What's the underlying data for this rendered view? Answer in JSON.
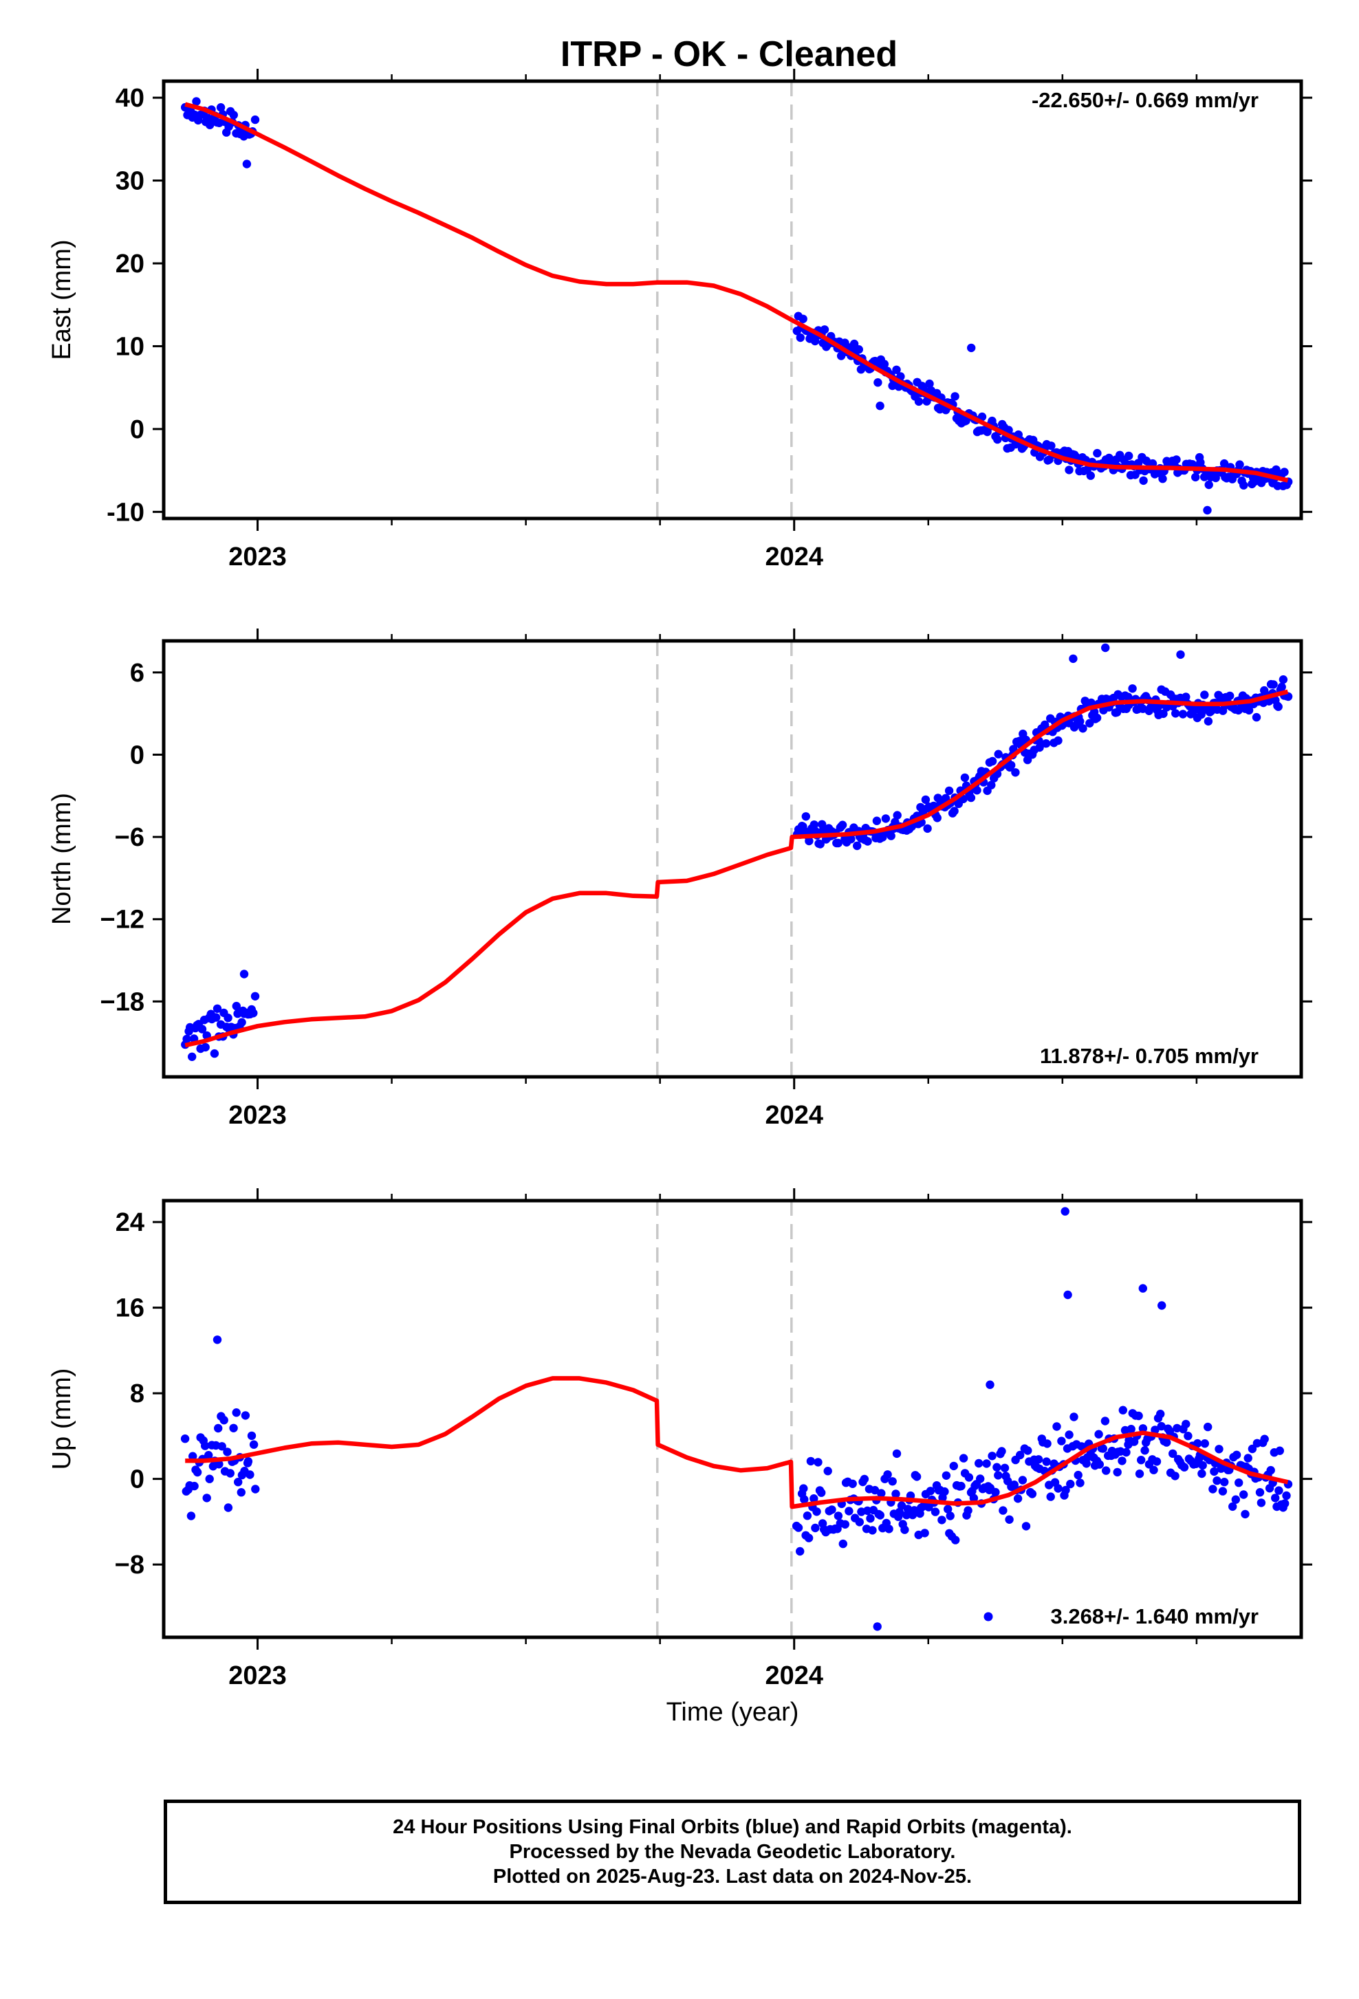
{
  "title": "ITRP  - OK - Cleaned",
  "x_axis_label": "Time (year)",
  "caption": [
    "24 Hour Positions Using Final Orbits (blue) and Rapid Orbits (magenta).",
    "Processed by the Nevada Geodetic Laboratory.",
    "Plotted on 2025-Aug-23. Last data on 2024-Nov-25."
  ],
  "colors": {
    "final_orbits": "#0000ff",
    "model_fit": "#ff0000",
    "event_lines": "#c8c8c8",
    "frame": "#000000"
  },
  "chart_data": [
    {
      "type": "scatter",
      "ylabel": "East (mm)",
      "rate_label": "-22.650+/- 0.669 mm/yr",
      "rate_label_position": "top-right",
      "xlim": [
        2022.825,
        2024.945
      ],
      "ylim": [
        -10.8,
        42.0
      ],
      "yticks": [
        40,
        30,
        20,
        10,
        0,
        -10
      ],
      "xticks": [
        2023,
        2024
      ],
      "xtick_labels": [
        "2023",
        "2024"
      ],
      "event_lines_x": [
        2023.745,
        2023.995
      ],
      "series": [
        {
          "kind": "final-orbits-points",
          "segments": [
            {
              "x0": 2022.865,
              "x1": 2022.995,
              "n": 38,
              "trend": [
                {
                  "x": 2022.865,
                  "y": 38.5
                },
                {
                  "x": 2022.93,
                  "y": 37.5
                },
                {
                  "x": 2022.995,
                  "y": 35.5
                }
              ],
              "noise": 1.6,
              "seed": 11
            },
            {
              "x0": 2024.005,
              "x1": 2024.92,
              "n": 300,
              "trend": [
                {
                  "x": 2024.0,
                  "y": 13.2
                },
                {
                  "x": 2024.1,
                  "y": 9.5
                },
                {
                  "x": 2024.2,
                  "y": 5.8
                },
                {
                  "x": 2024.3,
                  "y": 2.2
                },
                {
                  "x": 2024.4,
                  "y": -1.0
                },
                {
                  "x": 2024.5,
                  "y": -3.5
                },
                {
                  "x": 2024.6,
                  "y": -4.6
                },
                {
                  "x": 2024.7,
                  "y": -4.8
                },
                {
                  "x": 2024.8,
                  "y": -5.0
                },
                {
                  "x": 2024.92,
                  "y": -6.5
                }
              ],
              "noise": 1.5,
              "seed": 22
            }
          ],
          "extra": [
            {
              "x": 2022.98,
              "y": 32.0
            },
            {
              "x": 2024.33,
              "y": 9.8
            },
            {
              "x": 2024.16,
              "y": 2.8
            },
            {
              "x": 2024.77,
              "y": -9.8
            }
          ]
        },
        {
          "kind": "model-fit-line",
          "points": [
            {
              "x": 2022.865,
              "y": 39.2
            },
            {
              "x": 2022.9,
              "y": 38.6
            },
            {
              "x": 2022.95,
              "y": 37.2
            },
            {
              "x": 2023.0,
              "y": 35.6
            },
            {
              "x": 2023.05,
              "y": 34.0
            },
            {
              "x": 2023.1,
              "y": 32.3
            },
            {
              "x": 2023.15,
              "y": 30.6
            },
            {
              "x": 2023.2,
              "y": 29.0
            },
            {
              "x": 2023.25,
              "y": 27.5
            },
            {
              "x": 2023.3,
              "y": 26.1
            },
            {
              "x": 2023.35,
              "y": 24.6
            },
            {
              "x": 2023.4,
              "y": 23.1
            },
            {
              "x": 2023.45,
              "y": 21.4
            },
            {
              "x": 2023.5,
              "y": 19.8
            },
            {
              "x": 2023.55,
              "y": 18.5
            },
            {
              "x": 2023.6,
              "y": 17.8
            },
            {
              "x": 2023.65,
              "y": 17.5
            },
            {
              "x": 2023.7,
              "y": 17.5
            },
            {
              "x": 2023.745,
              "y": 17.7
            },
            {
              "x": 2023.8,
              "y": 17.7
            },
            {
              "x": 2023.85,
              "y": 17.3
            },
            {
              "x": 2023.9,
              "y": 16.3
            },
            {
              "x": 2023.95,
              "y": 14.8
            },
            {
              "x": 2024.0,
              "y": 13.0
            },
            {
              "x": 2024.05,
              "y": 11.3
            },
            {
              "x": 2024.1,
              "y": 9.3
            },
            {
              "x": 2024.15,
              "y": 7.4
            },
            {
              "x": 2024.2,
              "y": 5.6
            },
            {
              "x": 2024.25,
              "y": 4.0
            },
            {
              "x": 2024.3,
              "y": 2.4
            },
            {
              "x": 2024.35,
              "y": 0.8
            },
            {
              "x": 2024.4,
              "y": -0.8
            },
            {
              "x": 2024.45,
              "y": -2.3
            },
            {
              "x": 2024.5,
              "y": -3.5
            },
            {
              "x": 2024.55,
              "y": -4.3
            },
            {
              "x": 2024.6,
              "y": -4.6
            },
            {
              "x": 2024.7,
              "y": -4.7
            },
            {
              "x": 2024.8,
              "y": -4.9
            },
            {
              "x": 2024.86,
              "y": -5.3
            },
            {
              "x": 2024.92,
              "y": -6.2
            }
          ]
        }
      ]
    },
    {
      "type": "scatter",
      "ylabel": "North (mm)",
      "rate_label": "11.878+/- 0.705 mm/yr",
      "rate_label_position": "bottom-right",
      "xlim": [
        2022.825,
        2024.945
      ],
      "ylim": [
        -23.5,
        8.3
      ],
      "yticks": [
        6,
        0,
        -6,
        -12,
        -18
      ],
      "ytick_labels": [
        "6",
        "0",
        "−6",
        "−12",
        "−18"
      ],
      "xticks": [
        2023,
        2024
      ],
      "xtick_labels": [
        "2023",
        "2024"
      ],
      "event_lines_x": [
        2023.745,
        2023.995
      ],
      "series": [
        {
          "kind": "final-orbits-points",
          "segments": [
            {
              "x0": 2022.865,
              "x1": 2022.995,
              "n": 42,
              "trend": [
                {
                  "x": 2022.865,
                  "y": -21.0
                },
                {
                  "x": 2022.93,
                  "y": -20.0
                },
                {
                  "x": 2022.995,
                  "y": -18.3
                }
              ],
              "noise": 1.3,
              "seed": 33
            },
            {
              "x0": 2024.005,
              "x1": 2024.92,
              "n": 320,
              "trend": [
                {
                  "x": 2024.0,
                  "y": -5.3
                },
                {
                  "x": 2024.1,
                  "y": -5.9
                },
                {
                  "x": 2024.2,
                  "y": -5.4
                },
                {
                  "x": 2024.27,
                  "y": -4.0
                },
                {
                  "x": 2024.35,
                  "y": -1.6
                },
                {
                  "x": 2024.45,
                  "y": 1.1
                },
                {
                  "x": 2024.55,
                  "y": 3.4
                },
                {
                  "x": 2024.65,
                  "y": 3.8
                },
                {
                  "x": 2024.75,
                  "y": 3.6
                },
                {
                  "x": 2024.85,
                  "y": 3.8
                },
                {
                  "x": 2024.92,
                  "y": 4.7
                }
              ],
              "noise": 1.1,
              "seed": 44
            }
          ],
          "extra": [
            {
              "x": 2022.975,
              "y": -16.0
            },
            {
              "x": 2024.58,
              "y": 7.8
            },
            {
              "x": 2024.52,
              "y": 7.0
            },
            {
              "x": 2024.72,
              "y": 7.3
            }
          ]
        },
        {
          "kind": "model-fit-line",
          "points": [
            {
              "x": 2022.865,
              "y": -21.2
            },
            {
              "x": 2022.9,
              "y": -20.9
            },
            {
              "x": 2022.95,
              "y": -20.3
            },
            {
              "x": 2023.0,
              "y": -19.8
            },
            {
              "x": 2023.05,
              "y": -19.5
            },
            {
              "x": 2023.1,
              "y": -19.3
            },
            {
              "x": 2023.15,
              "y": -19.2
            },
            {
              "x": 2023.2,
              "y": -19.1
            },
            {
              "x": 2023.25,
              "y": -18.7
            },
            {
              "x": 2023.3,
              "y": -17.9
            },
            {
              "x": 2023.35,
              "y": -16.6
            },
            {
              "x": 2023.4,
              "y": -14.9
            },
            {
              "x": 2023.45,
              "y": -13.1
            },
            {
              "x": 2023.5,
              "y": -11.5
            },
            {
              "x": 2023.55,
              "y": -10.5
            },
            {
              "x": 2023.6,
              "y": -10.1
            },
            {
              "x": 2023.65,
              "y": -10.1
            },
            {
              "x": 2023.7,
              "y": -10.3
            },
            {
              "x": 2023.744,
              "y": -10.35
            },
            {
              "x": 2023.746,
              "y": -9.3
            },
            {
              "x": 2023.8,
              "y": -9.2
            },
            {
              "x": 2023.85,
              "y": -8.7
            },
            {
              "x": 2023.9,
              "y": -8.0
            },
            {
              "x": 2023.95,
              "y": -7.3
            },
            {
              "x": 2023.994,
              "y": -6.8
            },
            {
              "x": 2023.996,
              "y": -6.0
            },
            {
              "x": 2024.05,
              "y": -5.9
            },
            {
              "x": 2024.1,
              "y": -5.8
            },
            {
              "x": 2024.15,
              "y": -5.6
            },
            {
              "x": 2024.2,
              "y": -5.2
            },
            {
              "x": 2024.25,
              "y": -4.4
            },
            {
              "x": 2024.3,
              "y": -3.2
            },
            {
              "x": 2024.35,
              "y": -1.8
            },
            {
              "x": 2024.4,
              "y": -0.3
            },
            {
              "x": 2024.45,
              "y": 1.2
            },
            {
              "x": 2024.5,
              "y": 2.5
            },
            {
              "x": 2024.55,
              "y": 3.4
            },
            {
              "x": 2024.6,
              "y": 3.8
            },
            {
              "x": 2024.65,
              "y": 3.9
            },
            {
              "x": 2024.7,
              "y": 3.8
            },
            {
              "x": 2024.75,
              "y": 3.7
            },
            {
              "x": 2024.8,
              "y": 3.7
            },
            {
              "x": 2024.85,
              "y": 3.9
            },
            {
              "x": 2024.92,
              "y": 4.6
            }
          ]
        }
      ]
    },
    {
      "type": "scatter",
      "ylabel": "Up (mm)",
      "rate_label": "3.268+/- 1.640 mm/yr",
      "rate_label_position": "bottom-right",
      "xlim": [
        2022.825,
        2024.945
      ],
      "ylim": [
        -14.8,
        26.0
      ],
      "yticks": [
        24,
        16,
        8,
        0,
        -8
      ],
      "ytick_labels": [
        "24",
        "16",
        "8",
        "0",
        "−8"
      ],
      "xticks": [
        2023,
        2024
      ],
      "xtick_labels": [
        "2023",
        "2024"
      ],
      "event_lines_x": [
        2023.745,
        2023.995
      ],
      "series": [
        {
          "kind": "final-orbits-points",
          "segments": [
            {
              "x0": 2022.865,
              "x1": 2022.995,
              "n": 46,
              "trend": [
                {
                  "x": 2022.865,
                  "y": 0.5
                },
                {
                  "x": 2022.93,
                  "y": 3.0
                },
                {
                  "x": 2022.995,
                  "y": 1.0
                }
              ],
              "noise": 4.2,
              "seed": 55
            },
            {
              "x0": 2024.005,
              "x1": 2024.92,
              "n": 320,
              "trend": [
                {
                  "x": 2024.0,
                  "y": -2.5
                },
                {
                  "x": 2024.2,
                  "y": -2.0
                },
                {
                  "x": 2024.35,
                  "y": -1.5
                },
                {
                  "x": 2024.5,
                  "y": 1.5
                },
                {
                  "x": 2024.65,
                  "y": 3.8
                },
                {
                  "x": 2024.8,
                  "y": 1.0
                },
                {
                  "x": 2024.92,
                  "y": -0.5
                }
              ],
              "noise": 3.8,
              "seed": 66
            }
          ],
          "extra": [
            {
              "x": 2024.505,
              "y": 25.0
            },
            {
              "x": 2024.51,
              "y": 17.2
            },
            {
              "x": 2024.65,
              "y": 17.8
            },
            {
              "x": 2024.685,
              "y": 16.2
            },
            {
              "x": 2024.155,
              "y": -13.8
            },
            {
              "x": 2024.365,
              "y": 8.8
            },
            {
              "x": 2022.925,
              "y": 13.0
            }
          ]
        },
        {
          "kind": "model-fit-line",
          "points": [
            {
              "x": 2022.865,
              "y": 1.7
            },
            {
              "x": 2022.9,
              "y": 1.7
            },
            {
              "x": 2022.95,
              "y": 1.9
            },
            {
              "x": 2023.0,
              "y": 2.4
            },
            {
              "x": 2023.05,
              "y": 2.9
            },
            {
              "x": 2023.1,
              "y": 3.3
            },
            {
              "x": 2023.15,
              "y": 3.4
            },
            {
              "x": 2023.2,
              "y": 3.2
            },
            {
              "x": 2023.25,
              "y": 3.0
            },
            {
              "x": 2023.3,
              "y": 3.2
            },
            {
              "x": 2023.35,
              "y": 4.2
            },
            {
              "x": 2023.4,
              "y": 5.8
            },
            {
              "x": 2023.45,
              "y": 7.5
            },
            {
              "x": 2023.5,
              "y": 8.7
            },
            {
              "x": 2023.55,
              "y": 9.4
            },
            {
              "x": 2023.6,
              "y": 9.4
            },
            {
              "x": 2023.65,
              "y": 9.0
            },
            {
              "x": 2023.7,
              "y": 8.3
            },
            {
              "x": 2023.744,
              "y": 7.3
            },
            {
              "x": 2023.746,
              "y": 3.2
            },
            {
              "x": 2023.8,
              "y": 2.0
            },
            {
              "x": 2023.85,
              "y": 1.2
            },
            {
              "x": 2023.9,
              "y": 0.8
            },
            {
              "x": 2023.95,
              "y": 1.0
            },
            {
              "x": 2023.994,
              "y": 1.6
            },
            {
              "x": 2023.996,
              "y": -2.6
            },
            {
              "x": 2024.05,
              "y": -2.2
            },
            {
              "x": 2024.1,
              "y": -1.9
            },
            {
              "x": 2024.15,
              "y": -1.8
            },
            {
              "x": 2024.2,
              "y": -1.9
            },
            {
              "x": 2024.25,
              "y": -2.1
            },
            {
              "x": 2024.3,
              "y": -2.3
            },
            {
              "x": 2024.35,
              "y": -2.2
            },
            {
              "x": 2024.4,
              "y": -1.5
            },
            {
              "x": 2024.45,
              "y": -0.3
            },
            {
              "x": 2024.5,
              "y": 1.3
            },
            {
              "x": 2024.55,
              "y": 2.9
            },
            {
              "x": 2024.6,
              "y": 3.9
            },
            {
              "x": 2024.65,
              "y": 4.3
            },
            {
              "x": 2024.7,
              "y": 3.9
            },
            {
              "x": 2024.75,
              "y": 2.8
            },
            {
              "x": 2024.8,
              "y": 1.5
            },
            {
              "x": 2024.85,
              "y": 0.5
            },
            {
              "x": 2024.92,
              "y": -0.3
            }
          ]
        }
      ]
    }
  ]
}
